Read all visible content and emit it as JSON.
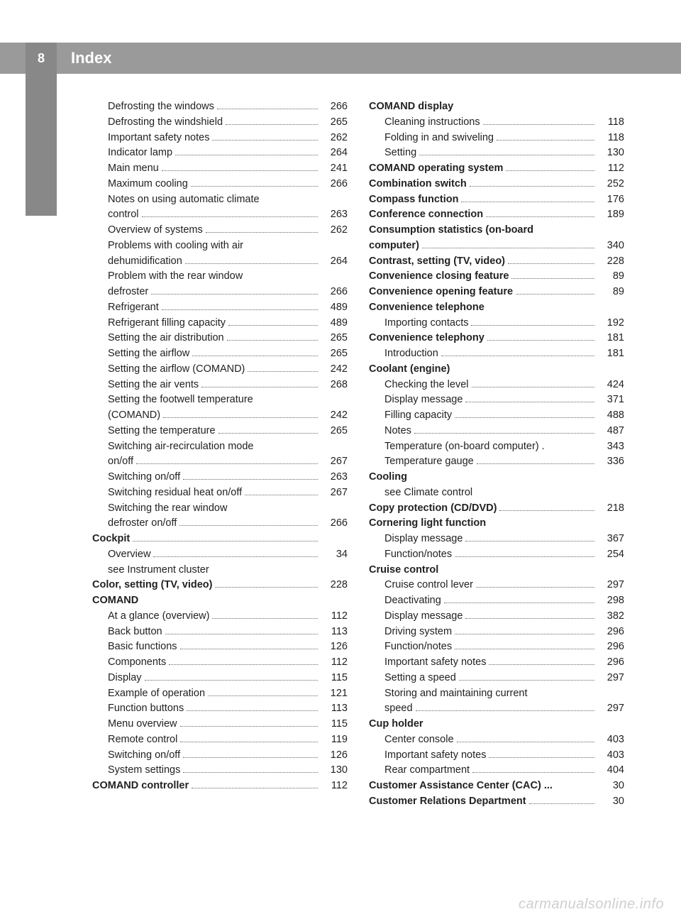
{
  "header": {
    "page_number": "8",
    "title": "Index"
  },
  "footer": "carmanualsonline.info",
  "columns": [
    [
      {
        "label": "Defrosting the windows",
        "page": "266",
        "sub": true
      },
      {
        "label": "Defrosting the windshield",
        "page": "265",
        "sub": true
      },
      {
        "label": "Important safety notes",
        "page": "262",
        "sub": true
      },
      {
        "label": "Indicator lamp",
        "page": "264",
        "sub": true
      },
      {
        "label": "Main menu",
        "page": "241",
        "sub": true
      },
      {
        "label": "Maximum cooling",
        "page": "266",
        "sub": true
      },
      {
        "label": "Notes on using automatic climate",
        "sub": true,
        "cont": true
      },
      {
        "label": "control",
        "page": "263",
        "sub": true
      },
      {
        "label": "Overview of systems",
        "page": "262",
        "sub": true
      },
      {
        "label": "Problems with cooling with air",
        "sub": true,
        "cont": true
      },
      {
        "label": "dehumidification",
        "page": "264",
        "sub": true
      },
      {
        "label": "Problem with the rear window",
        "sub": true,
        "cont": true
      },
      {
        "label": "defroster",
        "page": "266",
        "sub": true
      },
      {
        "label": "Refrigerant",
        "page": "489",
        "sub": true
      },
      {
        "label": "Refrigerant filling capacity",
        "page": "489",
        "sub": true
      },
      {
        "label": "Setting the air distribution",
        "page": "265",
        "sub": true
      },
      {
        "label": "Setting the airflow",
        "page": "265",
        "sub": true
      },
      {
        "label": "Setting the airflow (COMAND)",
        "page": "242",
        "sub": true
      },
      {
        "label": "Setting the air vents",
        "page": "268",
        "sub": true
      },
      {
        "label": "Setting the footwell temperature",
        "sub": true,
        "cont": true
      },
      {
        "label": "(COMAND)",
        "page": "242",
        "sub": true
      },
      {
        "label": "Setting the temperature",
        "page": "265",
        "sub": true
      },
      {
        "label": "Switching air-recirculation mode",
        "sub": true,
        "cont": true
      },
      {
        "label": "on/off",
        "page": "267",
        "sub": true
      },
      {
        "label": "Switching on/off",
        "page": "263",
        "sub": true
      },
      {
        "label": "Switching residual heat on/off",
        "page": "267",
        "sub": true
      },
      {
        "label": "Switching the rear window",
        "sub": true,
        "cont": true
      },
      {
        "label": "defroster on/off",
        "page": "266",
        "sub": true
      },
      {
        "label": "Cockpit",
        "bold": true
      },
      {
        "label": "Overview",
        "page": "34",
        "sub": true
      },
      {
        "label": "see Instrument cluster",
        "sub": true,
        "nopage": true
      },
      {
        "label": "Color, setting (TV, video)",
        "page": "228",
        "bold": true
      },
      {
        "label": "COMAND",
        "bold": true,
        "nopage": true
      },
      {
        "label": "At a glance (overview)",
        "page": "112",
        "sub": true
      },
      {
        "label": "Back button",
        "page": "113",
        "sub": true
      },
      {
        "label": "Basic functions",
        "page": "126",
        "sub": true
      },
      {
        "label": "Components",
        "page": "112",
        "sub": true
      },
      {
        "label": "Display",
        "page": "115",
        "sub": true
      },
      {
        "label": "Example of operation",
        "page": "121",
        "sub": true
      },
      {
        "label": "Function buttons",
        "page": "113",
        "sub": true
      },
      {
        "label": "Menu overview",
        "page": "115",
        "sub": true
      },
      {
        "label": "Remote control",
        "page": "119",
        "sub": true
      },
      {
        "label": "Switching on/off",
        "page": "126",
        "sub": true
      },
      {
        "label": "System settings",
        "page": "130",
        "sub": true
      },
      {
        "label": "COMAND controller",
        "page": "112",
        "bold": true
      }
    ],
    [
      {
        "label": "COMAND display",
        "bold": true,
        "nopage": true
      },
      {
        "label": "Cleaning instructions",
        "page": "118",
        "sub": true
      },
      {
        "label": "Folding in and swiveling",
        "page": "118",
        "sub": true
      },
      {
        "label": "Setting",
        "page": "130",
        "sub": true
      },
      {
        "label": "COMAND operating system",
        "page": "112",
        "bold": true
      },
      {
        "label": "Combination switch",
        "page": "252",
        "bold": true
      },
      {
        "label": "Compass function",
        "page": "176",
        "bold": true
      },
      {
        "label": "Conference connection",
        "page": "189",
        "bold": true
      },
      {
        "label": "Consumption statistics (on-board",
        "bold": true,
        "cont": true
      },
      {
        "label": "computer)",
        "page": "340",
        "bold": true
      },
      {
        "label": "Contrast, setting (TV, video)",
        "page": "228",
        "bold": true
      },
      {
        "label": "Convenience closing feature",
        "page": "89",
        "bold": true
      },
      {
        "label": "Convenience opening feature",
        "page": "89",
        "bold": true
      },
      {
        "label": "Convenience telephone",
        "bold": true,
        "nopage": true
      },
      {
        "label": "Importing contacts",
        "page": "192",
        "sub": true
      },
      {
        "label": "Convenience telephony",
        "page": "181",
        "bold": true
      },
      {
        "label": "Introduction",
        "page": "181",
        "sub": true
      },
      {
        "label": "Coolant (engine)",
        "bold": true,
        "nopage": true
      },
      {
        "label": "Checking the level",
        "page": "424",
        "sub": true
      },
      {
        "label": "Display message",
        "page": "371",
        "sub": true
      },
      {
        "label": "Filling capacity",
        "page": "488",
        "sub": true
      },
      {
        "label": "Notes",
        "page": "487",
        "sub": true
      },
      {
        "label": "Temperature (on-board computer) .",
        "page": "343",
        "sub": true,
        "nodots": true
      },
      {
        "label": "Temperature gauge",
        "page": "336",
        "sub": true
      },
      {
        "label": "Cooling",
        "bold": true,
        "nopage": true
      },
      {
        "label": "see Climate control",
        "sub": true,
        "nopage": true
      },
      {
        "label": "Copy protection (CD/DVD)",
        "page": "218",
        "bold": true
      },
      {
        "label": "Cornering light function",
        "bold": true,
        "nopage": true
      },
      {
        "label": "Display message",
        "page": "367",
        "sub": true
      },
      {
        "label": "Function/notes",
        "page": "254",
        "sub": true
      },
      {
        "label": "Cruise control",
        "bold": true,
        "nopage": true
      },
      {
        "label": "Cruise control lever",
        "page": "297",
        "sub": true
      },
      {
        "label": "Deactivating",
        "page": "298",
        "sub": true
      },
      {
        "label": "Display message",
        "page": "382",
        "sub": true
      },
      {
        "label": "Driving system",
        "page": "296",
        "sub": true
      },
      {
        "label": "Function/notes",
        "page": "296",
        "sub": true
      },
      {
        "label": "Important safety notes",
        "page": "296",
        "sub": true
      },
      {
        "label": "Setting a speed",
        "page": "297",
        "sub": true
      },
      {
        "label": "Storing and maintaining current",
        "sub": true,
        "cont": true
      },
      {
        "label": "speed",
        "page": "297",
        "sub": true
      },
      {
        "label": "Cup holder",
        "bold": true,
        "nopage": true
      },
      {
        "label": "Center console",
        "page": "403",
        "sub": true
      },
      {
        "label": "Important safety notes",
        "page": "403",
        "sub": true
      },
      {
        "label": "Rear compartment",
        "page": "404",
        "sub": true
      },
      {
        "label": "Customer Assistance Center (CAC) ...",
        "page": "30",
        "bold": true,
        "nodots": true
      },
      {
        "label": "Customer Relations Department",
        "page": "30",
        "bold": true
      }
    ]
  ]
}
